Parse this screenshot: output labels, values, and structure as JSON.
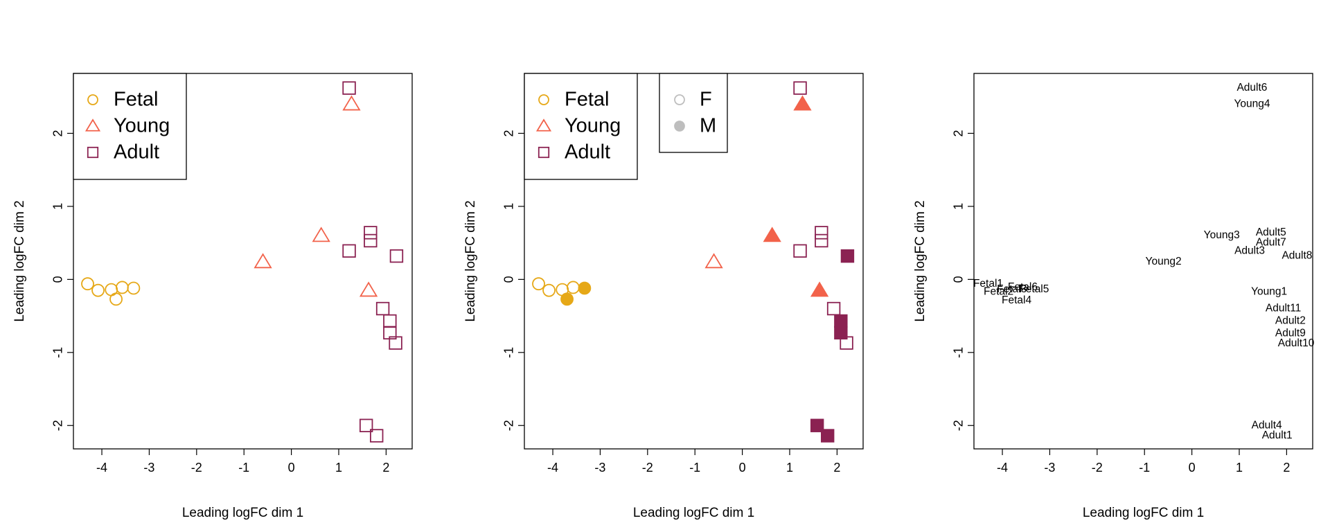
{
  "colors": {
    "Fetal": "#E6A817",
    "Young": "#F2624A",
    "Adult": "#8B2252",
    "sex_legend_gray": "#BEBEBE",
    "frame": "#000000"
  },
  "chart_data": [
    {
      "type": "scatter",
      "xlabel": "Leading logFC dim 1",
      "ylabel": "Leading logFC dim 2",
      "xlim": [
        -4.6,
        2.55
      ],
      "ylim": [
        -2.32,
        2.82
      ],
      "xticks": [
        -4,
        -3,
        -2,
        -1,
        0,
        1,
        2
      ],
      "yticks": [
        -2,
        -1,
        0,
        1,
        2
      ],
      "marker_style": "open",
      "legend": {
        "position": "top-left",
        "entries": [
          {
            "label": "Fetal",
            "shape": "circle",
            "group": "Fetal"
          },
          {
            "label": "Young",
            "shape": "triangle",
            "group": "Young"
          },
          {
            "label": "Adult",
            "shape": "square",
            "group": "Adult"
          }
        ]
      },
      "series": [
        {
          "name": "Fetal",
          "shape": "circle",
          "points": [
            {
              "x": -4.3,
              "y": -0.06
            },
            {
              "x": -4.08,
              "y": -0.15
            },
            {
              "x": -3.8,
              "y": -0.14
            },
            {
              "x": -3.7,
              "y": -0.27
            },
            {
              "x": -3.57,
              "y": -0.11
            },
            {
              "x": -3.33,
              "y": -0.12
            }
          ]
        },
        {
          "name": "Young",
          "shape": "triangle",
          "points": [
            {
              "x": -0.6,
              "y": 0.24
            },
            {
              "x": 0.63,
              "y": 0.6
            },
            {
              "x": 1.63,
              "y": -0.15
            },
            {
              "x": 1.27,
              "y": 2.4
            }
          ]
        },
        {
          "name": "Adult",
          "shape": "square",
          "points": [
            {
              "x": 1.22,
              "y": 2.62
            },
            {
              "x": 1.22,
              "y": 0.39
            },
            {
              "x": 1.67,
              "y": 0.64
            },
            {
              "x": 1.67,
              "y": 0.53
            },
            {
              "x": 2.22,
              "y": 0.32
            },
            {
              "x": 1.93,
              "y": -0.4
            },
            {
              "x": 2.08,
              "y": -0.57
            },
            {
              "x": 2.08,
              "y": -0.73
            },
            {
              "x": 2.2,
              "y": -0.87
            },
            {
              "x": 1.58,
              "y": -2.0
            },
            {
              "x": 1.8,
              "y": -2.14
            }
          ]
        }
      ]
    },
    {
      "type": "scatter",
      "xlabel": "Leading logFC dim 1",
      "ylabel": "Leading logFC dim 2",
      "xlim": [
        -4.6,
        2.55
      ],
      "ylim": [
        -2.32,
        2.82
      ],
      "xticks": [
        -4,
        -3,
        -2,
        -1,
        0,
        1,
        2
      ],
      "yticks": [
        -2,
        -1,
        0,
        1,
        2
      ],
      "marker_style": "open = F, filled = M",
      "legend": {
        "position": "top-left",
        "entries": [
          {
            "label": "Fetal",
            "shape": "circle",
            "group": "Fetal"
          },
          {
            "label": "Young",
            "shape": "triangle",
            "group": "Young"
          },
          {
            "label": "Adult",
            "shape": "square",
            "group": "Adult"
          }
        ]
      },
      "legend2": {
        "position": "top-left",
        "entries": [
          {
            "label": "F",
            "shape": "circle",
            "filled": false
          },
          {
            "label": "M",
            "shape": "circle",
            "filled": true
          }
        ]
      },
      "series": [
        {
          "name": "Fetal",
          "shape": "circle",
          "points": [
            {
              "x": -4.3,
              "y": -0.06,
              "sex": "F"
            },
            {
              "x": -4.08,
              "y": -0.15,
              "sex": "F"
            },
            {
              "x": -3.8,
              "y": -0.14,
              "sex": "F"
            },
            {
              "x": -3.7,
              "y": -0.27,
              "sex": "M"
            },
            {
              "x": -3.57,
              "y": -0.11,
              "sex": "F"
            },
            {
              "x": -3.33,
              "y": -0.12,
              "sex": "M"
            }
          ]
        },
        {
          "name": "Young",
          "shape": "triangle",
          "points": [
            {
              "x": -0.6,
              "y": 0.24,
              "sex": "F"
            },
            {
              "x": 0.63,
              "y": 0.6,
              "sex": "M"
            },
            {
              "x": 1.63,
              "y": -0.15,
              "sex": "M"
            },
            {
              "x": 1.27,
              "y": 2.4,
              "sex": "M"
            }
          ]
        },
        {
          "name": "Adult",
          "shape": "square",
          "points": [
            {
              "x": 1.22,
              "y": 2.62,
              "sex": "F"
            },
            {
              "x": 1.22,
              "y": 0.39,
              "sex": "F"
            },
            {
              "x": 1.67,
              "y": 0.64,
              "sex": "F"
            },
            {
              "x": 1.67,
              "y": 0.53,
              "sex": "F"
            },
            {
              "x": 2.22,
              "y": 0.32,
              "sex": "M"
            },
            {
              "x": 1.93,
              "y": -0.4,
              "sex": "F"
            },
            {
              "x": 2.08,
              "y": -0.57,
              "sex": "M"
            },
            {
              "x": 2.08,
              "y": -0.73,
              "sex": "M"
            },
            {
              "x": 2.2,
              "y": -0.87,
              "sex": "F"
            },
            {
              "x": 1.58,
              "y": -2.0,
              "sex": "M"
            },
            {
              "x": 1.8,
              "y": -2.14,
              "sex": "M"
            }
          ]
        }
      ]
    },
    {
      "type": "scatter",
      "xlabel": "Leading logFC dim 1",
      "ylabel": "Leading logFC dim 2",
      "xlim": [
        -4.6,
        2.55
      ],
      "ylim": [
        -2.32,
        2.82
      ],
      "xticks": [
        -4,
        -3,
        -2,
        -1,
        0,
        1,
        2
      ],
      "yticks": [
        -2,
        -1,
        0,
        1,
        2
      ],
      "marker_style": "text labels",
      "labels": [
        {
          "text": "Adult6",
          "x": 1.27,
          "y": 2.62
        },
        {
          "text": "Young4",
          "x": 1.27,
          "y": 2.4
        },
        {
          "text": "Young3",
          "x": 0.63,
          "y": 0.6
        },
        {
          "text": "Adult5",
          "x": 1.67,
          "y": 0.64
        },
        {
          "text": "Adult7",
          "x": 1.67,
          "y": 0.5
        },
        {
          "text": "Adult3",
          "x": 1.22,
          "y": 0.39
        },
        {
          "text": "Adult8",
          "x": 2.22,
          "y": 0.32
        },
        {
          "text": "Young2",
          "x": -0.6,
          "y": 0.24
        },
        {
          "text": "Fetal1",
          "x": -4.3,
          "y": -0.06
        },
        {
          "text": "Fetal6",
          "x": -3.57,
          "y": -0.11
        },
        {
          "text": "Fetal5",
          "x": -3.33,
          "y": -0.14
        },
        {
          "text": "Fetal3",
          "x": -3.8,
          "y": -0.14
        },
        {
          "text": "Fetal2",
          "x": -4.08,
          "y": -0.17
        },
        {
          "text": "Fetal4",
          "x": -3.7,
          "y": -0.29
        },
        {
          "text": "Young1",
          "x": 1.63,
          "y": -0.17
        },
        {
          "text": "Adult11",
          "x": 1.93,
          "y": -0.4
        },
        {
          "text": "Adult2",
          "x": 2.08,
          "y": -0.57
        },
        {
          "text": "Adult9",
          "x": 2.08,
          "y": -0.74
        },
        {
          "text": "Adult10",
          "x": 2.2,
          "y": -0.88
        },
        {
          "text": "Adult4",
          "x": 1.58,
          "y": -2.0
        },
        {
          "text": "Adult1",
          "x": 1.8,
          "y": -2.14
        }
      ]
    }
  ]
}
